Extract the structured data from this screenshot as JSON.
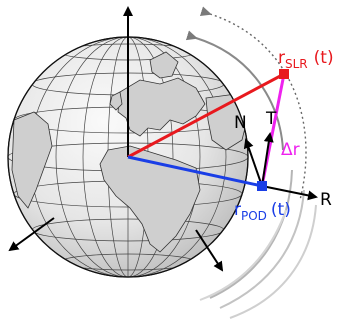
{
  "labels": {
    "r_slr_base": "r",
    "r_slr_sub": "SLR",
    "r_slr_arg": "(t)",
    "r_pod_base": "r",
    "r_pod_sub": "POD",
    "r_pod_arg": "(t)",
    "delta_r": "Δr",
    "n_axis": "N",
    "t_axis": "T",
    "r_axis": "R"
  },
  "colors": {
    "slr": "#e8191e",
    "pod": "#1a3ee6",
    "delta": "#ee22ee",
    "axes": "#000000",
    "orbit": "#a9a9a9",
    "globe_land": "#d9d9d9",
    "globe_sea": "#efefef"
  },
  "icons": {
    "globe": "earth-globe",
    "slr_point": "red-square-marker",
    "pod_point": "blue-square-marker"
  }
}
